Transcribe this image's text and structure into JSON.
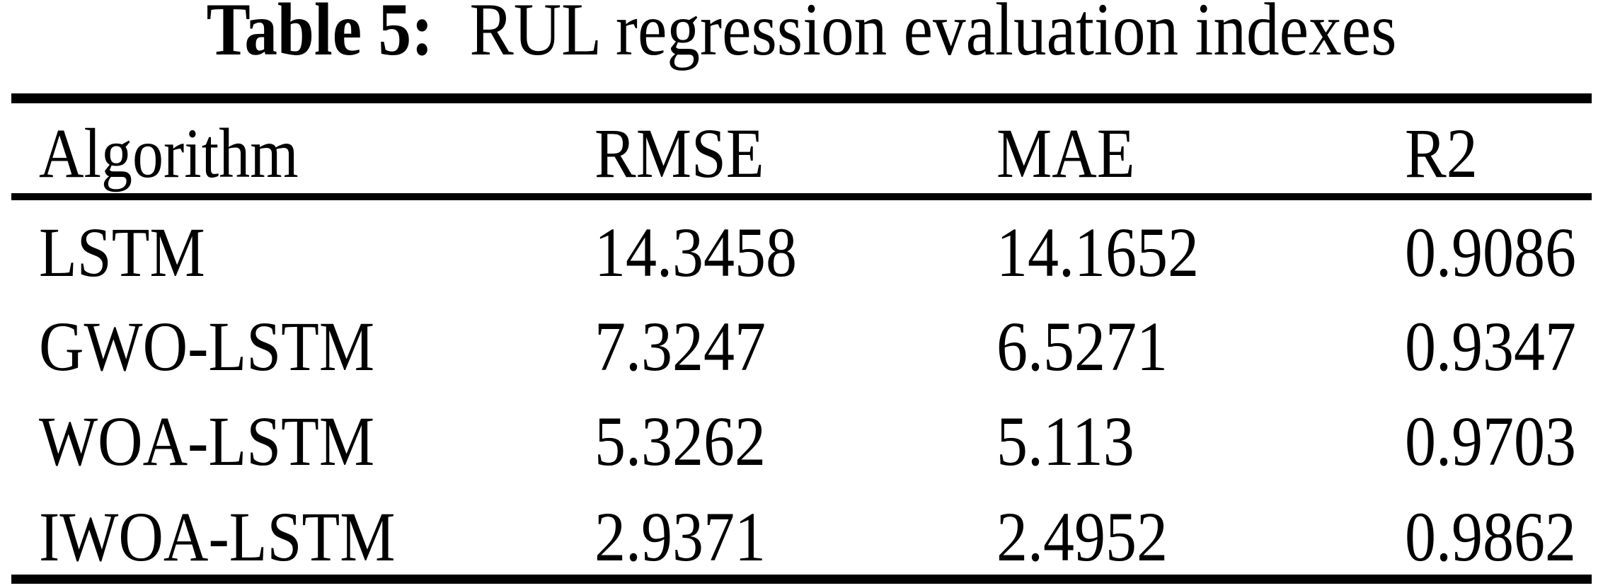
{
  "caption": {
    "label": "Table 5:",
    "text": "RUL regression evaluation indexes"
  },
  "table": {
    "columns": [
      "Algorithm",
      "RMSE",
      "MAE",
      "R2"
    ],
    "rows": [
      [
        "LSTM",
        "14.3458",
        "14.1652",
        "0.9086"
      ],
      [
        "GWO-LSTM",
        "7.3247",
        "6.5271",
        "0.9347"
      ],
      [
        "WOA-LSTM",
        "5.3262",
        "5.113",
        "0.9703"
      ],
      [
        "IWOA-LSTM",
        "2.9371",
        "2.4952",
        "0.9862"
      ]
    ]
  },
  "colors": {
    "text": "#000000",
    "background": "#ffffff",
    "rule": "#000000"
  },
  "chart_data": {
    "type": "table",
    "title": "Table 5: RUL regression evaluation indexes",
    "columns": [
      "Algorithm",
      "RMSE",
      "MAE",
      "R2"
    ],
    "rows": [
      {
        "Algorithm": "LSTM",
        "RMSE": 14.3458,
        "MAE": 14.1652,
        "R2": 0.9086
      },
      {
        "Algorithm": "GWO-LSTM",
        "RMSE": 7.3247,
        "MAE": 6.5271,
        "R2": 0.9347
      },
      {
        "Algorithm": "WOA-LSTM",
        "RMSE": 5.3262,
        "MAE": 5.113,
        "R2": 0.9703
      },
      {
        "Algorithm": "IWOA-LSTM",
        "RMSE": 2.9371,
        "MAE": 2.4952,
        "R2": 0.9862
      }
    ]
  }
}
